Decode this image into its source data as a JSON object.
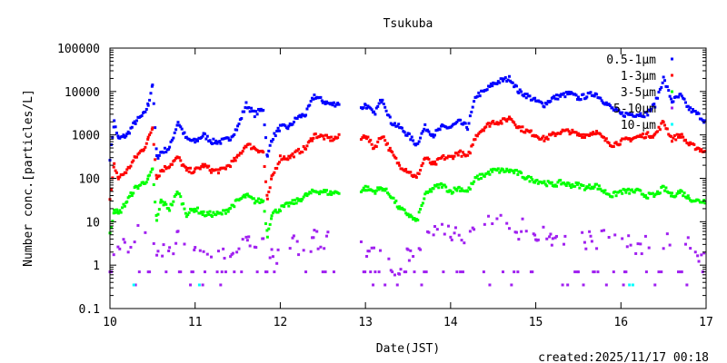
{
  "chart_data": {
    "type": "scatter",
    "title": "Tsukuba",
    "xlabel": "Date(JST)",
    "ylabel": "Number conc.[particles/L]",
    "yscale": "log",
    "ylim": [
      0.1,
      100000
    ],
    "xlim": [
      10,
      17
    ],
    "x_ticks": [
      "10",
      "11",
      "12",
      "13",
      "14",
      "15",
      "16",
      "17"
    ],
    "y_ticks": [
      "0.1",
      "1",
      "10",
      "100",
      "1000",
      "10000",
      "100000"
    ],
    "legend_position": "top-right",
    "footer": "created:2025/11/17 00:18",
    "x": [
      10,
      10.05,
      10.1,
      10.2,
      10.3,
      10.4,
      10.45,
      10.5,
      10.55,
      10.6,
      10.7,
      10.8,
      10.9,
      11,
      11.1,
      11.2,
      11.3,
      11.4,
      11.5,
      11.6,
      11.7,
      11.8,
      11.85,
      11.9,
      12,
      12.1,
      12.2,
      12.3,
      12.4,
      12.5,
      12.6,
      12.7,
      12.95,
      13,
      13.1,
      13.2,
      13.3,
      13.4,
      13.5,
      13.6,
      13.7,
      13.8,
      13.9,
      14,
      14.1,
      14.2,
      14.3,
      14.4,
      14.5,
      14.6,
      14.7,
      14.8,
      14.9,
      15,
      15.1,
      15.2,
      15.3,
      15.4,
      15.5,
      15.6,
      15.7,
      15.8,
      15.9,
      16,
      16.1,
      16.2,
      16.3,
      16.4,
      16.5,
      16.6,
      16.7,
      16.8,
      16.9,
      17
    ],
    "series": [
      {
        "name": "0.5-1μm",
        "color": "#0000ff",
        "values": [
          300,
          2000,
          800,
          1000,
          2000,
          3000,
          5000,
          15000,
          300,
          400,
          500,
          2000,
          800,
          700,
          1000,
          700,
          700,
          800,
          1500,
          5000,
          3000,
          4000,
          300,
          800,
          1500,
          1500,
          2500,
          3000,
          8000,
          6000,
          5000,
          5500,
          4000,
          5000,
          3000,
          7000,
          2000,
          1500,
          1000,
          600,
          1500,
          1000,
          1500,
          1500,
          2000,
          1500,
          8000,
          10000,
          15000,
          18000,
          20000,
          10000,
          8000,
          6000,
          5000,
          7000,
          8000,
          9000,
          7000,
          8000,
          9000,
          6000,
          4000,
          3000,
          3000,
          3000,
          3000,
          5000,
          20000,
          6000,
          8000,
          4000,
          3000,
          2000
        ]
      },
      {
        "name": "1-3μm",
        "color": "#ff0000",
        "values": [
          30,
          200,
          100,
          150,
          300,
          500,
          800,
          1500,
          100,
          150,
          200,
          300,
          150,
          150,
          200,
          150,
          150,
          200,
          300,
          600,
          500,
          400,
          30,
          100,
          300,
          300,
          400,
          500,
          1000,
          900,
          800,
          900,
          800,
          1000,
          500,
          1000,
          400,
          200,
          150,
          100,
          300,
          200,
          300,
          300,
          400,
          300,
          1000,
          1500,
          2000,
          2000,
          2500,
          1500,
          1200,
          1000,
          800,
          1000,
          1200,
          1200,
          1000,
          1000,
          1200,
          800,
          600,
          700,
          800,
          900,
          1000,
          1000,
          2000,
          800,
          1000,
          600,
          500,
          400
        ]
      },
      {
        "name": "3-5μm",
        "color": "#00ff00",
        "values": [
          5,
          20,
          15,
          30,
          60,
          80,
          100,
          150,
          10,
          30,
          20,
          50,
          15,
          20,
          15,
          15,
          15,
          20,
          30,
          40,
          30,
          30,
          5,
          15,
          20,
          25,
          30,
          40,
          50,
          50,
          45,
          50,
          50,
          60,
          50,
          60,
          40,
          20,
          15,
          10,
          40,
          60,
          70,
          50,
          60,
          50,
          100,
          120,
          150,
          150,
          150,
          130,
          100,
          90,
          80,
          70,
          80,
          70,
          70,
          60,
          70,
          50,
          40,
          50,
          50,
          50,
          40,
          40,
          60,
          40,
          50,
          35,
          30,
          30
        ]
      },
      {
        "name": "5-10μm",
        "color": "#a020f0",
        "values": [
          0.7,
          3,
          2,
          3,
          5,
          8,
          5,
          8,
          1,
          2,
          2,
          4,
          1.5,
          2,
          1.5,
          1.5,
          2,
          2,
          3,
          4,
          3,
          5,
          1,
          1.5,
          2,
          2.5,
          3,
          3,
          4,
          4,
          3,
          4,
          3,
          3,
          2,
          2,
          1,
          1,
          2,
          1,
          4,
          5,
          6,
          5,
          5,
          5,
          8,
          10,
          10,
          10,
          8,
          7,
          7,
          6,
          6,
          5,
          5,
          5,
          5,
          4,
          4,
          4,
          3,
          3,
          3,
          3,
          3,
          3,
          4,
          3,
          3,
          3,
          2,
          2
        ]
      },
      {
        "name": "10-μm",
        "color": "#00ffff",
        "points": [
          [
            10.28,
            0.35
          ],
          [
            11.05,
            0.35
          ],
          [
            16.1,
            0.35
          ],
          [
            16.14,
            0.35
          ]
        ]
      }
    ]
  }
}
